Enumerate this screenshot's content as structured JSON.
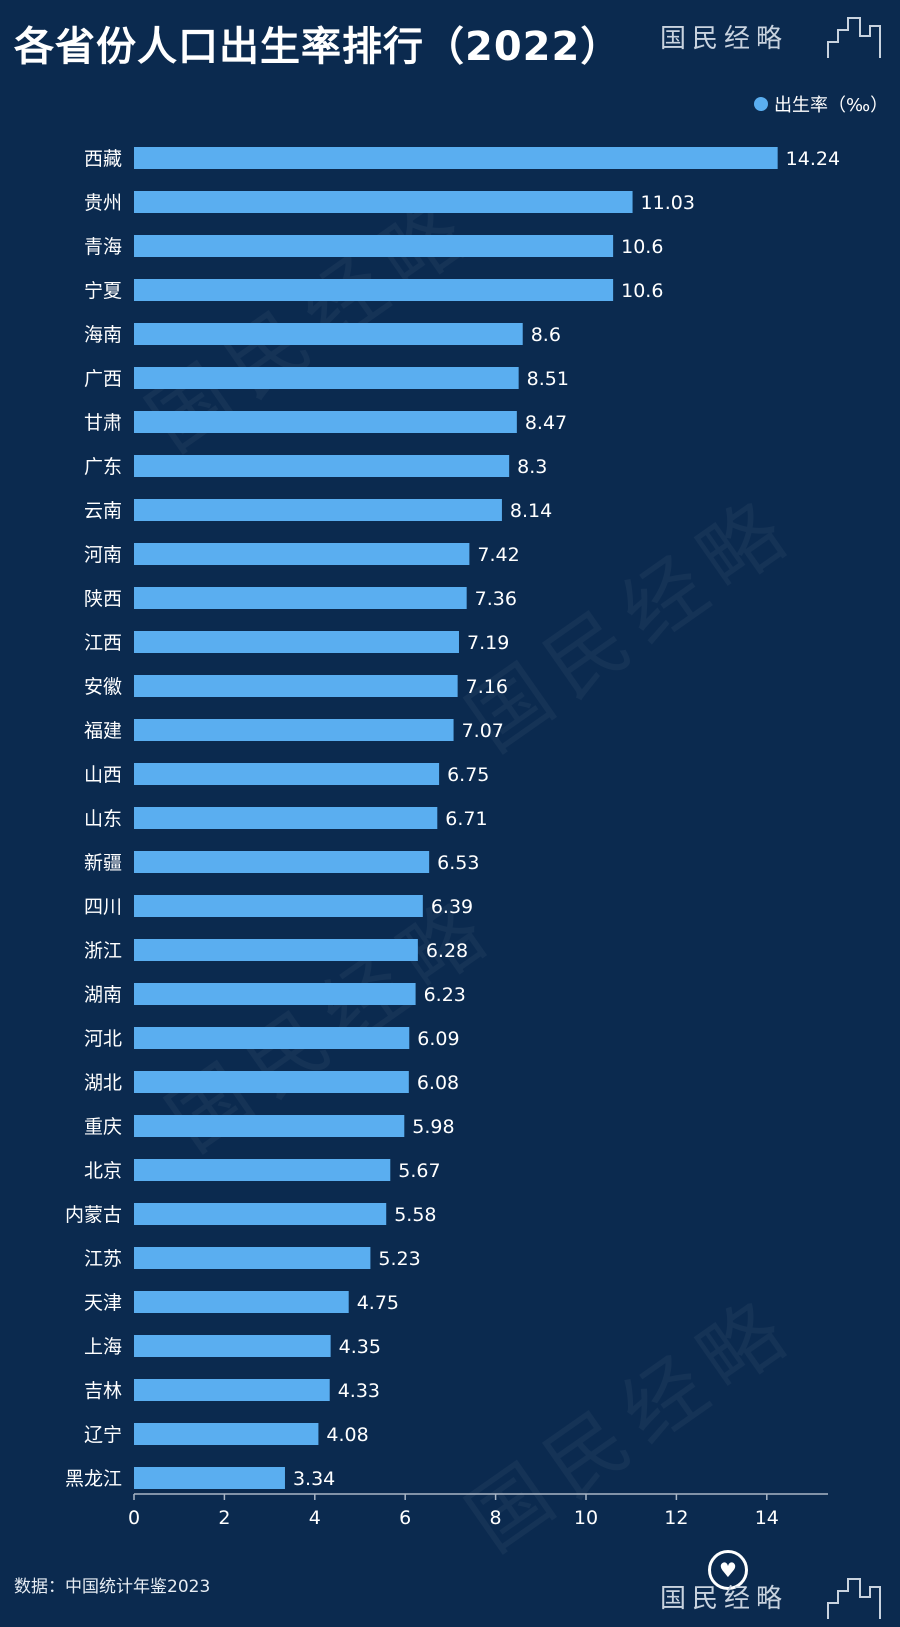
{
  "header": {
    "title": "各省份人口出生率排行（2022）",
    "brand": "国民经略"
  },
  "watermarks": [
    "国民经略",
    "国民经略",
    "国民经略",
    "国民经略"
  ],
  "footer": {
    "source": "数据：中国统计年鉴2023",
    "brand": "国民经略",
    "heart_icon": "heart-logo-icon"
  },
  "colors": {
    "background": "#0b2a4f",
    "bar": "#5aaef0",
    "text": "#ffffff"
  },
  "chart_data": {
    "type": "bar",
    "orientation": "horizontal",
    "title": "各省份人口出生率排行（2022）",
    "categories": [
      "西藏",
      "贵州",
      "青海",
      "宁夏",
      "海南",
      "广西",
      "甘肃",
      "广东",
      "云南",
      "河南",
      "陕西",
      "江西",
      "安徽",
      "福建",
      "山西",
      "山东",
      "新疆",
      "四川",
      "浙江",
      "湖南",
      "河北",
      "湖北",
      "重庆",
      "北京",
      "内蒙古",
      "江苏",
      "天津",
      "上海",
      "吉林",
      "辽宁",
      "黑龙江"
    ],
    "series": [
      {
        "name": "出生率（‰）",
        "color": "#5aaef0",
        "values": [
          14.24,
          11.03,
          10.6,
          10.6,
          8.6,
          8.51,
          8.47,
          8.3,
          8.14,
          7.42,
          7.36,
          7.19,
          7.16,
          7.07,
          6.75,
          6.71,
          6.53,
          6.39,
          6.28,
          6.23,
          6.09,
          6.08,
          5.98,
          5.67,
          5.58,
          5.23,
          4.75,
          4.35,
          4.33,
          4.08,
          3.34
        ]
      }
    ],
    "xlim": [
      0,
      15
    ],
    "x_ticks": [
      0,
      2,
      4,
      6,
      8,
      10,
      12,
      14
    ],
    "legend": "top-right",
    "grid": false,
    "data_labels": true
  }
}
